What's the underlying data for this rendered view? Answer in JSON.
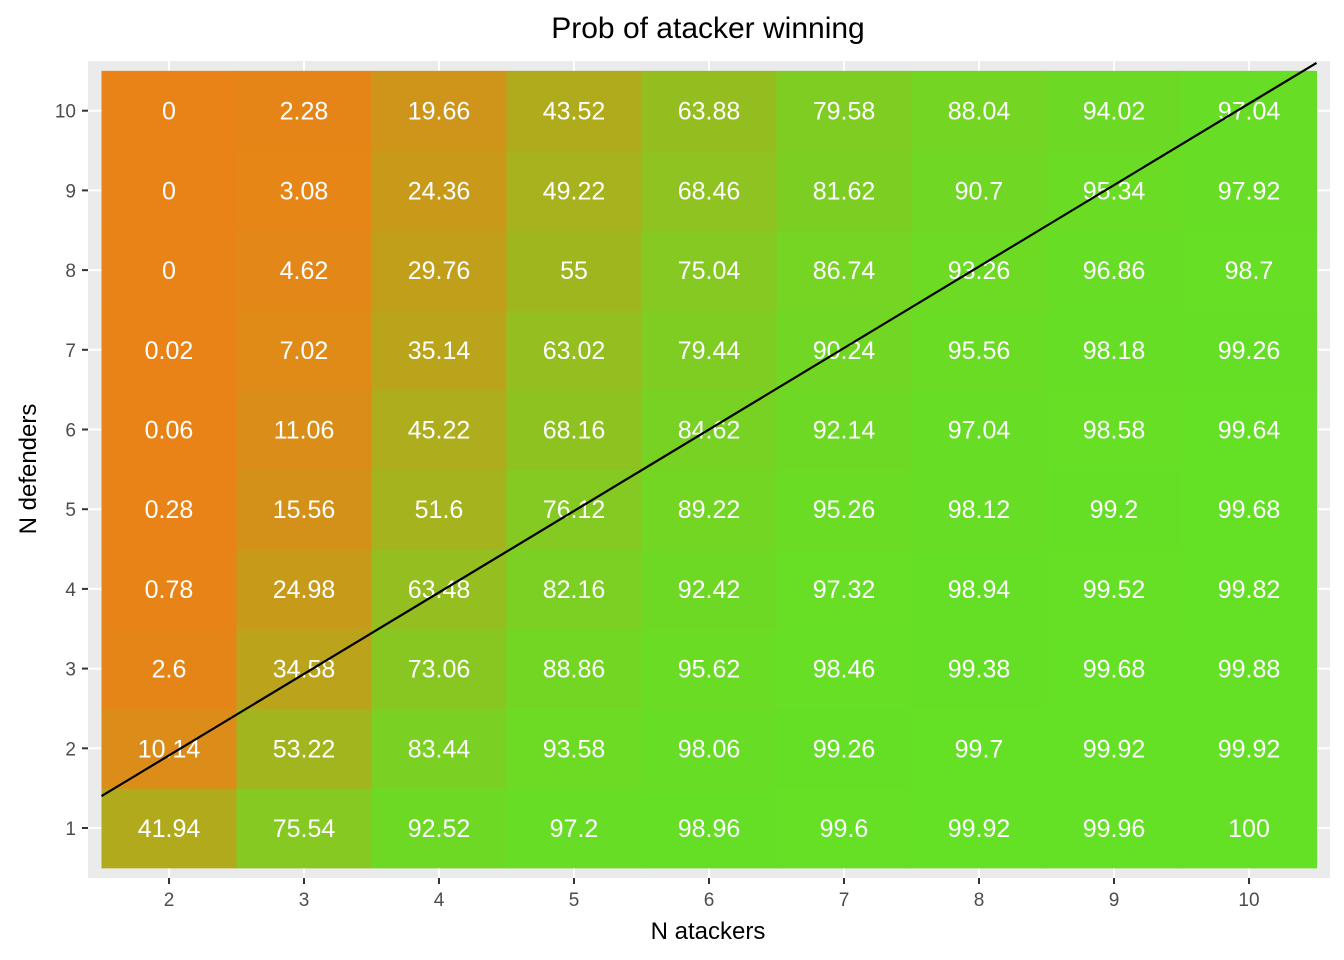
{
  "chart_data": {
    "type": "heatmap",
    "title": "Prob of atacker winning",
    "xlabel": "N atackers",
    "ylabel": "N defenders",
    "x": [
      2,
      3,
      4,
      5,
      6,
      7,
      8,
      9,
      10
    ],
    "y": [
      1,
      2,
      3,
      4,
      5,
      6,
      7,
      8,
      9,
      10
    ],
    "values": [
      [
        "41.94",
        "75.54",
        "92.52",
        "97.2",
        "98.96",
        "99.6",
        "99.92",
        "99.96",
        "100"
      ],
      [
        "10.14",
        "53.22",
        "83.44",
        "93.58",
        "98.06",
        "99.26",
        "99.7",
        "99.92",
        "99.92"
      ],
      [
        "2.6",
        "34.58",
        "73.06",
        "88.86",
        "95.62",
        "98.46",
        "99.38",
        "99.68",
        "99.88"
      ],
      [
        "0.78",
        "24.98",
        "63.48",
        "82.16",
        "92.42",
        "97.32",
        "98.94",
        "99.52",
        "99.82"
      ],
      [
        "0.28",
        "15.56",
        "51.6",
        "76.12",
        "89.22",
        "95.26",
        "98.12",
        "99.2",
        "99.68"
      ],
      [
        "0.06",
        "11.06",
        "45.22",
        "68.16",
        "84.62",
        "92.14",
        "97.04",
        "98.58",
        "99.64"
      ],
      [
        "0.02",
        "7.02",
        "35.14",
        "63.02",
        "79.44",
        "90.24",
        "95.56",
        "98.18",
        "99.26"
      ],
      [
        "0",
        "4.62",
        "29.76",
        "55",
        "75.04",
        "86.74",
        "93.26",
        "96.86",
        "98.7"
      ],
      [
        "0",
        "3.08",
        "24.36",
        "49.22",
        "68.46",
        "81.62",
        "90.7",
        "95.34",
        "97.92"
      ],
      [
        "0",
        "2.28",
        "19.66",
        "43.52",
        "63.88",
        "79.58",
        "88.04",
        "94.02",
        "97.04"
      ]
    ],
    "color_low": "#e98317",
    "color_high": "#64e025",
    "reference_line": {
      "x": [
        1.5,
        10.5
      ],
      "y": [
        1.4,
        10.6
      ]
    },
    "xlim": [
      1.5,
      10.5
    ],
    "ylim": [
      0.5,
      10.5
    ],
    "grid": true,
    "panel_background": "#ebebeb",
    "label_color": "#ffffff"
  }
}
